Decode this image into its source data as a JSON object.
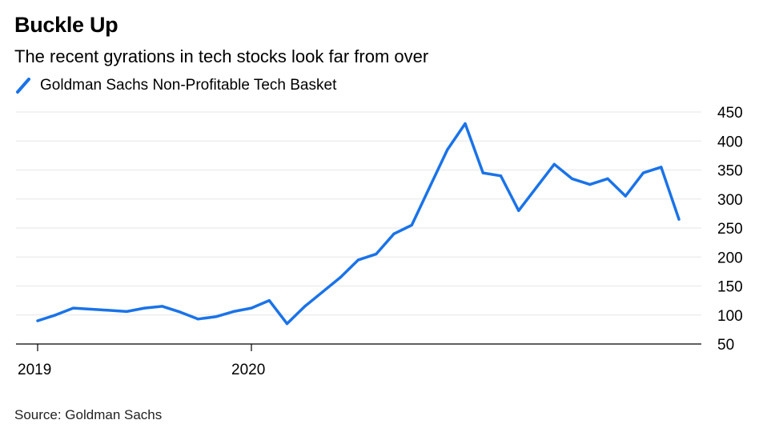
{
  "title": "Buckle Up",
  "subtitle": "The recent gyrations in tech stocks look far from over",
  "source": "Source: Goldman Sachs",
  "chart_data": {
    "type": "line",
    "title": "Buckle Up",
    "subtitle": "The recent gyrations in tech stocks look far from over",
    "xlabel": "",
    "ylabel": "",
    "ylim": [
      50,
      450
    ],
    "yticks": [
      "450",
      "400",
      "350",
      "300",
      "250",
      "200",
      "150",
      "100",
      "50"
    ],
    "xticks": [
      "2019",
      "2020"
    ],
    "grid": "horizontal",
    "legend_position": "top-left",
    "colors": {
      "series": "#1a73e8",
      "grid": "#e6e6e6",
      "axis": "#000000"
    },
    "series": [
      {
        "name": "Goldman Sachs Non-Profitable Tech Basket",
        "x": [
          "2019-01",
          "2019-02",
          "2019-03",
          "2019-04",
          "2019-05",
          "2019-06",
          "2019-07",
          "2019-08",
          "2019-09",
          "2019-10",
          "2019-11",
          "2019-12",
          "2020-01",
          "2020-02",
          "2020-03",
          "2020-04",
          "2020-05",
          "2020-06",
          "2020-07",
          "2020-08",
          "2020-09",
          "2020-10",
          "2020-11",
          "2020-12",
          "2021-01",
          "2021-02",
          "2021-03",
          "2021-04",
          "2021-05",
          "2021-06",
          "2021-07",
          "2021-08",
          "2021-09",
          "2021-10",
          "2021-11",
          "2021-12",
          "2022-01"
        ],
        "values": [
          90,
          100,
          112,
          110,
          108,
          106,
          112,
          115,
          105,
          93,
          97,
          106,
          112,
          125,
          85,
          115,
          140,
          165,
          195,
          205,
          240,
          255,
          320,
          385,
          430,
          345,
          340,
          280,
          320,
          360,
          335,
          325,
          335,
          305,
          345,
          355,
          265
        ]
      }
    ]
  }
}
